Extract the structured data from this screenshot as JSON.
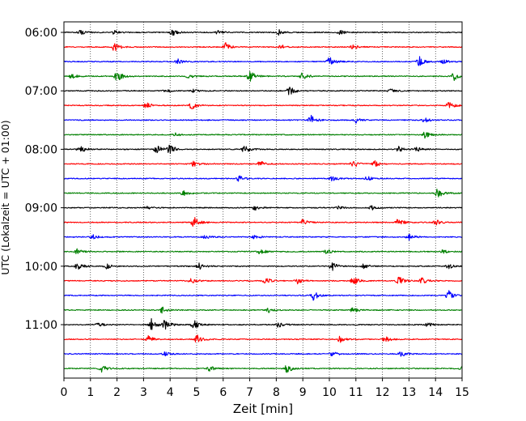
{
  "chart_data": {
    "type": "line",
    "title": "",
    "xlabel": "Zeit  [min]",
    "ylabel": "UTC (Lokalzeit = UTC + 01:00)",
    "xlim": [
      0,
      15
    ],
    "x_ticks": [
      0,
      1,
      2,
      3,
      4,
      5,
      6,
      7,
      8,
      9,
      10,
      11,
      12,
      13,
      14,
      15
    ],
    "x_tick_labels": [
      "0",
      "1",
      "2",
      "3",
      "4",
      "5",
      "6",
      "7",
      "8",
      "9",
      "10",
      "11",
      "12",
      "13",
      "14",
      "15"
    ],
    "y_tick_labels": [
      "06:00",
      "07:00",
      "08:00",
      "09:00",
      "10:00",
      "11:00"
    ],
    "y_tick_rows": [
      0,
      4,
      8,
      12,
      16,
      20
    ],
    "grid": "vertical-dotted",
    "trace_minutes_each": 15,
    "trace_colors": [
      "#000000",
      "#ff0000",
      "#0000ff",
      "#008000"
    ],
    "series": [
      {
        "start": "06:00",
        "events": [
          [
            0.6,
            0.5
          ],
          [
            1.9,
            0.4
          ],
          [
            4.1,
            0.6
          ],
          [
            5.8,
            0.4
          ],
          [
            8.1,
            0.5
          ],
          [
            10.4,
            0.4
          ]
        ]
      },
      {
        "start": "06:15",
        "events": [
          [
            1.9,
            0.9
          ],
          [
            6.1,
            0.8
          ],
          [
            8.2,
            0.4
          ],
          [
            10.9,
            0.4
          ]
        ]
      },
      {
        "start": "06:30",
        "events": [
          [
            4.3,
            0.5
          ],
          [
            10.0,
            0.9
          ],
          [
            13.4,
            0.9
          ],
          [
            14.3,
            0.4
          ]
        ]
      },
      {
        "start": "06:45",
        "events": [
          [
            0.3,
            0.5
          ],
          [
            2.0,
            1.0
          ],
          [
            4.7,
            0.4
          ],
          [
            7.0,
            1.1
          ],
          [
            9.0,
            0.8
          ],
          [
            14.7,
            0.8
          ]
        ]
      },
      {
        "start": "07:00",
        "events": [
          [
            3.8,
            0.4
          ],
          [
            4.9,
            0.3
          ],
          [
            8.5,
            0.9
          ],
          [
            12.3,
            0.4
          ]
        ]
      },
      {
        "start": "07:15",
        "events": [
          [
            3.1,
            0.6
          ],
          [
            4.8,
            0.8
          ],
          [
            14.5,
            0.7
          ]
        ]
      },
      {
        "start": "07:30",
        "events": [
          [
            9.3,
            0.9
          ],
          [
            11.0,
            0.5
          ],
          [
            13.6,
            0.4
          ]
        ]
      },
      {
        "start": "07:45",
        "events": [
          [
            4.2,
            0.3
          ],
          [
            13.6,
            0.6
          ]
        ]
      },
      {
        "start": "08:00",
        "events": [
          [
            0.6,
            0.9
          ],
          [
            3.5,
            0.8
          ],
          [
            4.0,
            0.9
          ],
          [
            6.8,
            0.8
          ],
          [
            12.6,
            0.6
          ],
          [
            13.3,
            0.4
          ]
        ]
      },
      {
        "start": "08:15",
        "events": [
          [
            4.9,
            0.6
          ],
          [
            7.4,
            0.6
          ],
          [
            10.9,
            0.8
          ],
          [
            11.7,
            0.6
          ]
        ]
      },
      {
        "start": "08:30",
        "events": [
          [
            6.6,
            0.6
          ],
          [
            10.1,
            0.6
          ],
          [
            11.4,
            0.5
          ]
        ]
      },
      {
        "start": "08:45",
        "events": [
          [
            4.5,
            0.6
          ],
          [
            14.1,
            1.0
          ]
        ]
      },
      {
        "start": "09:00",
        "events": [
          [
            3.1,
            0.3
          ],
          [
            7.2,
            0.5
          ],
          [
            10.3,
            0.4
          ],
          [
            11.6,
            0.4
          ]
        ]
      },
      {
        "start": "09:15",
        "events": [
          [
            4.9,
            1.1
          ],
          [
            9.0,
            0.6
          ],
          [
            12.6,
            0.8
          ],
          [
            14.0,
            0.6
          ]
        ]
      },
      {
        "start": "09:30",
        "events": [
          [
            1.1,
            0.4
          ],
          [
            5.3,
            0.4
          ],
          [
            7.2,
            0.4
          ],
          [
            13.0,
            0.6
          ]
        ]
      },
      {
        "start": "09:45",
        "events": [
          [
            0.5,
            0.5
          ],
          [
            7.4,
            0.5
          ],
          [
            9.9,
            0.4
          ],
          [
            14.3,
            0.4
          ]
        ]
      },
      {
        "start": "10:00",
        "events": [
          [
            0.5,
            0.8
          ],
          [
            1.6,
            0.5
          ],
          [
            5.1,
            0.6
          ],
          [
            10.1,
            0.9
          ],
          [
            11.3,
            0.5
          ],
          [
            14.5,
            0.5
          ]
        ]
      },
      {
        "start": "10:15",
        "events": [
          [
            4.8,
            0.5
          ],
          [
            7.6,
            0.6
          ],
          [
            8.8,
            0.6
          ],
          [
            10.9,
            0.8
          ],
          [
            12.6,
            0.9
          ],
          [
            13.5,
            0.6
          ]
        ]
      },
      {
        "start": "10:30",
        "events": [
          [
            9.4,
            0.9
          ],
          [
            14.5,
            0.9
          ]
        ]
      },
      {
        "start": "10:45",
        "events": [
          [
            3.7,
            0.6
          ],
          [
            7.7,
            0.5
          ],
          [
            10.9,
            0.5
          ]
        ]
      },
      {
        "start": "11:00",
        "events": [
          [
            1.3,
            0.4
          ],
          [
            3.3,
            1.2
          ],
          [
            3.8,
            0.9
          ],
          [
            4.9,
            0.9
          ],
          [
            8.1,
            0.6
          ],
          [
            13.7,
            0.4
          ]
        ]
      },
      {
        "start": "11:15",
        "events": [
          [
            3.2,
            0.7
          ],
          [
            5.0,
            0.9
          ],
          [
            10.4,
            0.6
          ],
          [
            12.1,
            0.7
          ]
        ]
      },
      {
        "start": "11:30",
        "events": [
          [
            3.8,
            0.4
          ],
          [
            10.1,
            0.5
          ],
          [
            12.7,
            0.6
          ]
        ]
      },
      {
        "start": "11:45",
        "events": [
          [
            1.4,
            0.8
          ],
          [
            5.5,
            0.5
          ],
          [
            8.4,
            0.8
          ],
          [
            15.0,
            0.4
          ]
        ]
      }
    ]
  }
}
